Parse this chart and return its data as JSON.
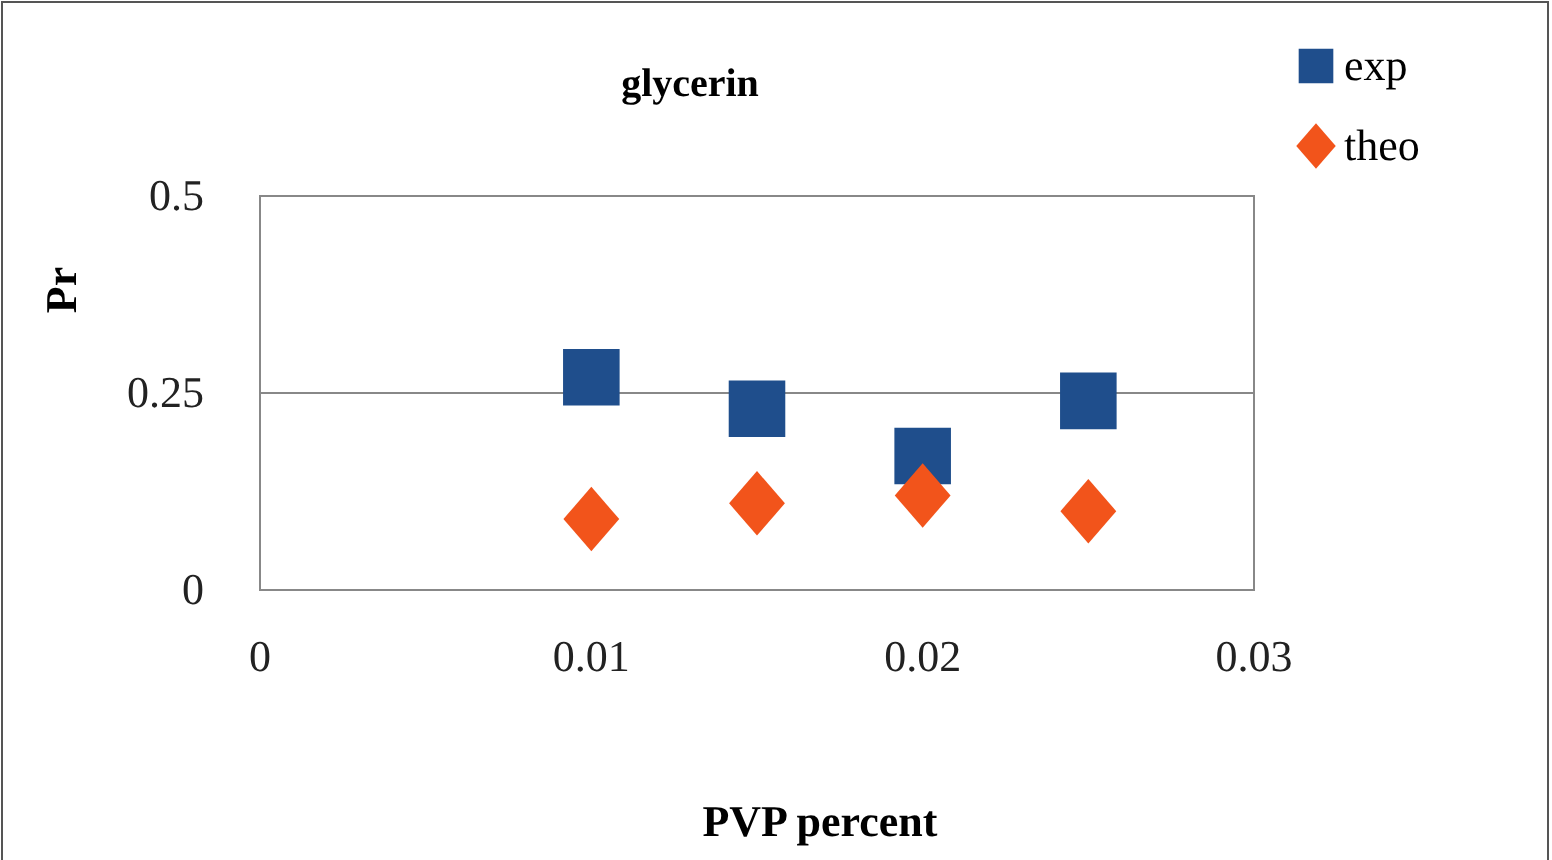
{
  "chart_data": {
    "type": "scatter",
    "title": "glycerin",
    "xlabel": "PVP  percent",
    "ylabel": "Pr",
    "xlim": [
      0,
      0.03
    ],
    "xticks": [
      0,
      0.01,
      0.02,
      0.03
    ],
    "ylim": [
      0,
      0.5
    ],
    "yticks": [
      0,
      0.25,
      0.5
    ],
    "grid": "y",
    "legend": "top right",
    "x": [
      0.01,
      0.015,
      0.02,
      0.025
    ],
    "series": [
      {
        "name": "exp",
        "color": "#1f4e8c",
        "marker": "square",
        "values": [
          0.27,
          0.23,
          0.17,
          0.24
        ]
      },
      {
        "name": "theo",
        "color": "#f2541b",
        "marker": "diamond",
        "values": [
          0.09,
          0.11,
          0.12,
          0.1
        ]
      }
    ]
  }
}
